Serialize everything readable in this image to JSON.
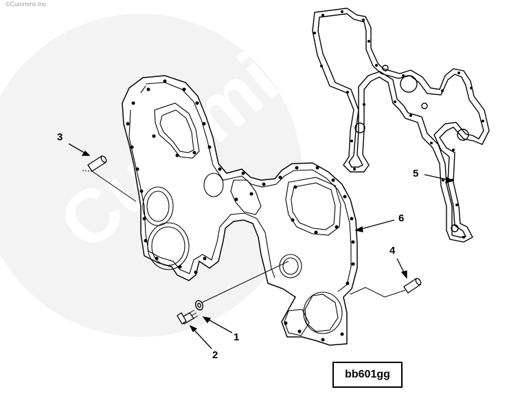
{
  "watermark": {
    "text": "Cummins"
  },
  "copyright": "©Cummins Inc",
  "callouts": [
    {
      "id": "1",
      "label": "1"
    },
    {
      "id": "2",
      "label": "2"
    },
    {
      "id": "3",
      "label": "3"
    },
    {
      "id": "4",
      "label": "4"
    },
    {
      "id": "5",
      "label": "5"
    },
    {
      "id": "6",
      "label": "6"
    }
  ],
  "figure_id": "bb601gg"
}
